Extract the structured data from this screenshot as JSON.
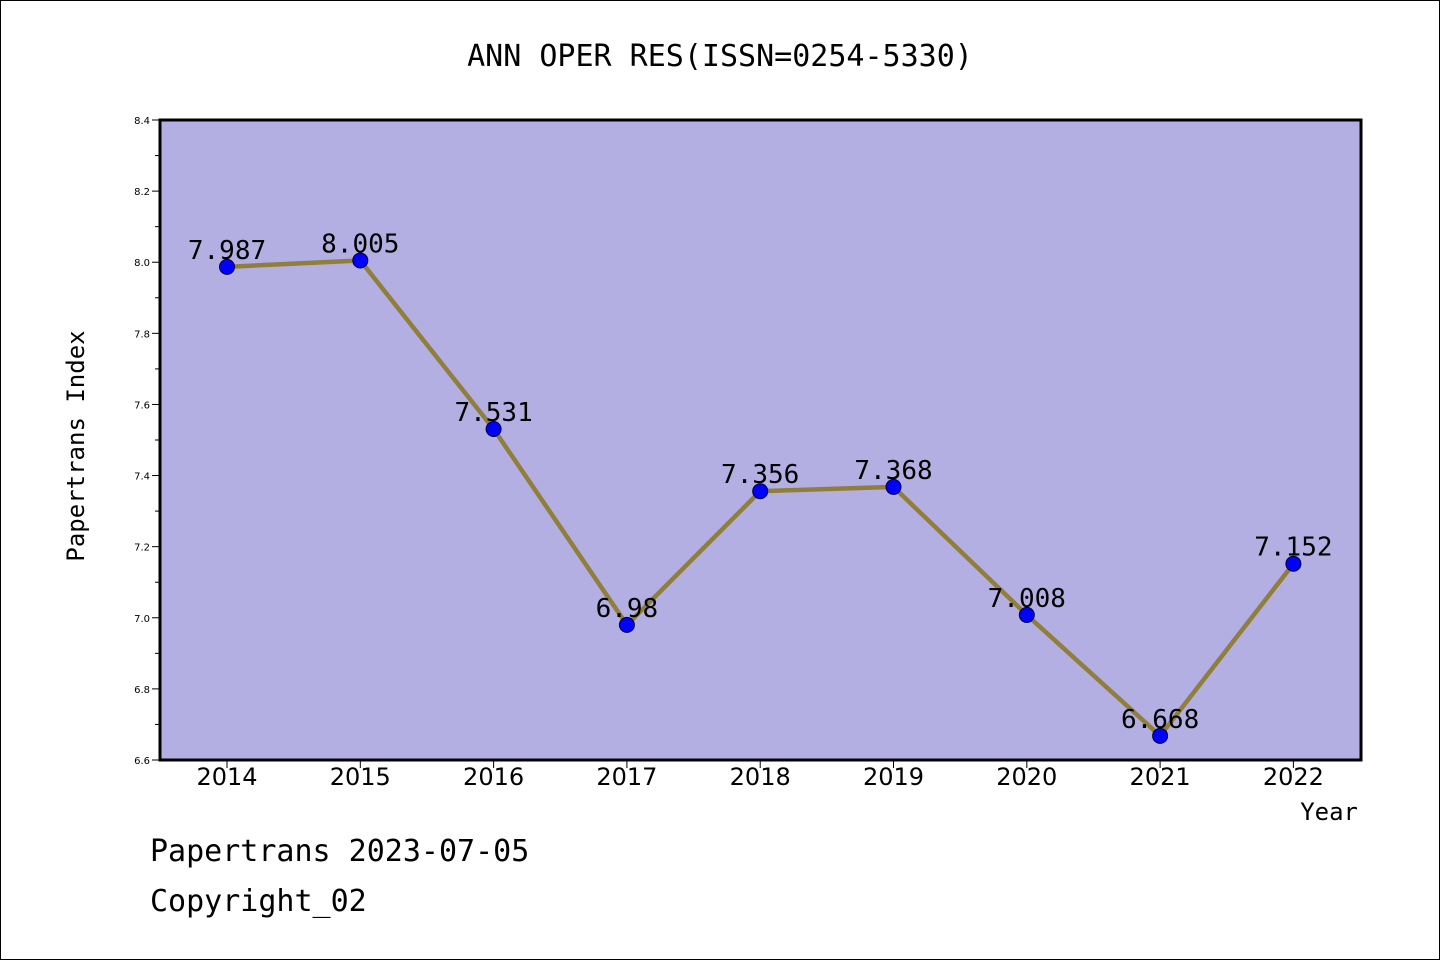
{
  "colors": {
    "plot_background": "#b4afe3",
    "line": "#8f7f3a",
    "marker": "#0000ff",
    "frame": "#000000"
  },
  "footer": {
    "line1": "Papertrans 2023-07-05",
    "line2": "Copyright_02"
  },
  "chart_data": {
    "type": "line",
    "title": "ANN OPER RES(ISSN=0254-5330)",
    "xlabel": "Year",
    "ylabel": "Papertrans Index",
    "ylim": [
      6.6,
      8.4
    ],
    "yticks": [
      "6.6",
      "6.8",
      "7.0",
      "7.2",
      "7.4",
      "7.6",
      "7.8",
      "8.0",
      "8.2",
      "8.4"
    ],
    "categories": [
      "2014",
      "2015",
      "2016",
      "2017",
      "2018",
      "2019",
      "2020",
      "2021",
      "2022"
    ],
    "values": [
      7.987,
      8.005,
      7.531,
      6.98,
      7.356,
      7.368,
      7.008,
      6.668,
      7.152
    ],
    "value_labels": [
      "7.987",
      "8.005",
      "7.531",
      "6.98",
      "7.356",
      "7.368",
      "7.008",
      "6.668",
      "7.152"
    ],
    "grid": false,
    "legend": "none"
  }
}
